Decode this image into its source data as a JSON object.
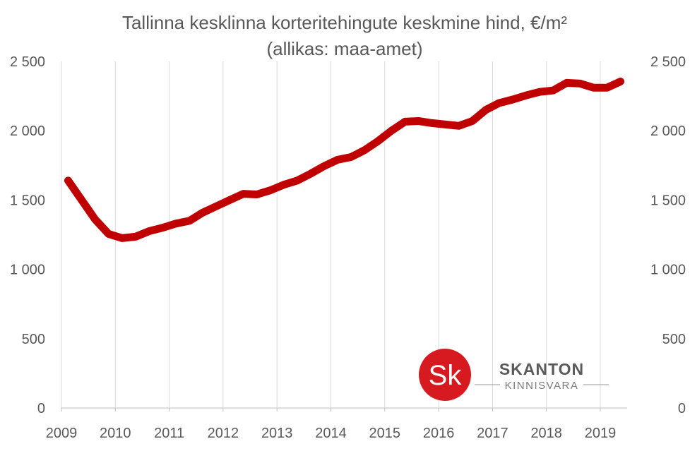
{
  "chart_data": {
    "type": "line",
    "title": "Tallinna kesklinna korteritehingute keskmine hind, €/m²",
    "subtitle": "(allikas: maa-amet)",
    "xlabel": "",
    "ylabel": "",
    "categories": [
      "2009",
      "2010",
      "2011",
      "2012",
      "2013",
      "2014",
      "2015",
      "2016",
      "2017",
      "2018",
      "2019"
    ],
    "ylim": [
      0,
      2500
    ],
    "y_ticks": [
      0,
      500,
      1000,
      1500,
      2000,
      2500
    ],
    "y_tick_labels": [
      "0",
      "500",
      "1 000",
      "1 500",
      "2 000",
      "2 500"
    ],
    "grid": "vertical",
    "secondary_axis": true,
    "series": [
      {
        "color": "#c00000",
        "x": [
          2009.125,
          2009.375,
          2009.625,
          2009.875,
          2010.125,
          2010.375,
          2010.625,
          2010.875,
          2011.125,
          2011.375,
          2011.625,
          2011.875,
          2012.125,
          2012.375,
          2012.625,
          2012.875,
          2013.125,
          2013.375,
          2013.625,
          2013.875,
          2014.125,
          2014.375,
          2014.625,
          2014.875,
          2015.125,
          2015.375,
          2015.625,
          2015.875,
          2016.125,
          2016.375,
          2016.625,
          2016.875,
          2017.125,
          2017.375,
          2017.625,
          2017.875,
          2018.125,
          2018.375,
          2018.625,
          2018.875,
          2019.125,
          2019.375
        ],
        "values": [
          1640,
          1500,
          1360,
          1255,
          1225,
          1235,
          1275,
          1300,
          1330,
          1350,
          1410,
          1455,
          1500,
          1545,
          1540,
          1570,
          1610,
          1640,
          1690,
          1745,
          1790,
          1810,
          1860,
          1925,
          2000,
          2065,
          2070,
          2055,
          2045,
          2035,
          2070,
          2150,
          2200,
          2225,
          2255,
          2280,
          2290,
          2345,
          2340,
          2310,
          2310,
          2355
        ]
      }
    ]
  },
  "logo": {
    "monogram": "Sk",
    "name": "SKANTON",
    "tagline": "KINNISVARA",
    "color": "#d71920"
  }
}
